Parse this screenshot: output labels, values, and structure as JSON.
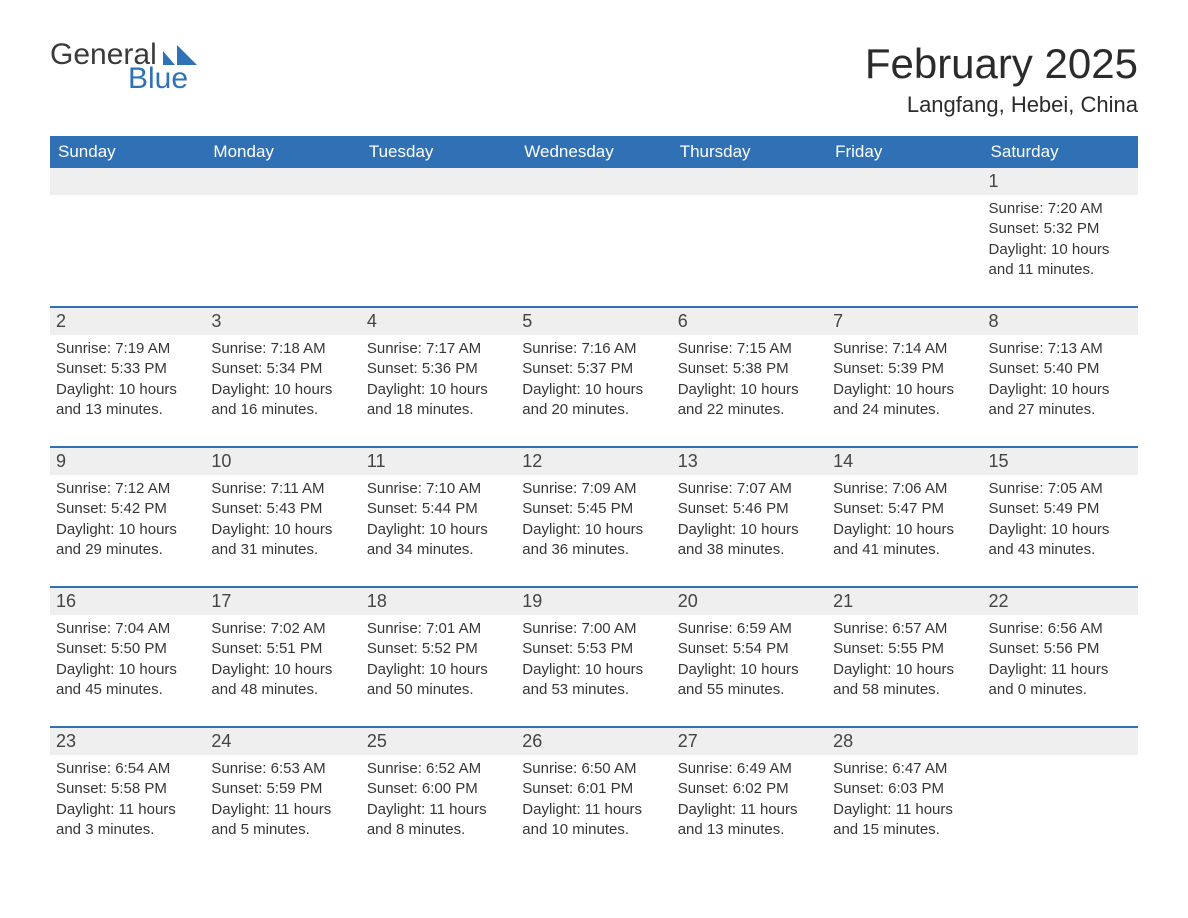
{
  "logo": {
    "text1": "General",
    "text2": "Blue",
    "accent_color": "#2f72b6"
  },
  "title": "February 2025",
  "location": "Langfang, Hebei, China",
  "colors": {
    "header_bg": "#3070b4",
    "header_text": "#ffffff",
    "num_bg": "#efefef",
    "row_border": "#3070b4",
    "text": "#363636"
  },
  "fonts": {
    "title_size": 42,
    "location_size": 22,
    "dow_size": 17,
    "body_size": 15
  },
  "days_of_week": [
    "Sunday",
    "Monday",
    "Tuesday",
    "Wednesday",
    "Thursday",
    "Friday",
    "Saturday"
  ],
  "first_weekday_index": 6,
  "days": [
    {
      "n": 1,
      "sunrise": "7:20 AM",
      "sunset": "5:32 PM",
      "daylight": "10 hours and 11 minutes."
    },
    {
      "n": 2,
      "sunrise": "7:19 AM",
      "sunset": "5:33 PM",
      "daylight": "10 hours and 13 minutes."
    },
    {
      "n": 3,
      "sunrise": "7:18 AM",
      "sunset": "5:34 PM",
      "daylight": "10 hours and 16 minutes."
    },
    {
      "n": 4,
      "sunrise": "7:17 AM",
      "sunset": "5:36 PM",
      "daylight": "10 hours and 18 minutes."
    },
    {
      "n": 5,
      "sunrise": "7:16 AM",
      "sunset": "5:37 PM",
      "daylight": "10 hours and 20 minutes."
    },
    {
      "n": 6,
      "sunrise": "7:15 AM",
      "sunset": "5:38 PM",
      "daylight": "10 hours and 22 minutes."
    },
    {
      "n": 7,
      "sunrise": "7:14 AM",
      "sunset": "5:39 PM",
      "daylight": "10 hours and 24 minutes."
    },
    {
      "n": 8,
      "sunrise": "7:13 AM",
      "sunset": "5:40 PM",
      "daylight": "10 hours and 27 minutes."
    },
    {
      "n": 9,
      "sunrise": "7:12 AM",
      "sunset": "5:42 PM",
      "daylight": "10 hours and 29 minutes."
    },
    {
      "n": 10,
      "sunrise": "7:11 AM",
      "sunset": "5:43 PM",
      "daylight": "10 hours and 31 minutes."
    },
    {
      "n": 11,
      "sunrise": "7:10 AM",
      "sunset": "5:44 PM",
      "daylight": "10 hours and 34 minutes."
    },
    {
      "n": 12,
      "sunrise": "7:09 AM",
      "sunset": "5:45 PM",
      "daylight": "10 hours and 36 minutes."
    },
    {
      "n": 13,
      "sunrise": "7:07 AM",
      "sunset": "5:46 PM",
      "daylight": "10 hours and 38 minutes."
    },
    {
      "n": 14,
      "sunrise": "7:06 AM",
      "sunset": "5:47 PM",
      "daylight": "10 hours and 41 minutes."
    },
    {
      "n": 15,
      "sunrise": "7:05 AM",
      "sunset": "5:49 PM",
      "daylight": "10 hours and 43 minutes."
    },
    {
      "n": 16,
      "sunrise": "7:04 AM",
      "sunset": "5:50 PM",
      "daylight": "10 hours and 45 minutes."
    },
    {
      "n": 17,
      "sunrise": "7:02 AM",
      "sunset": "5:51 PM",
      "daylight": "10 hours and 48 minutes."
    },
    {
      "n": 18,
      "sunrise": "7:01 AM",
      "sunset": "5:52 PM",
      "daylight": "10 hours and 50 minutes."
    },
    {
      "n": 19,
      "sunrise": "7:00 AM",
      "sunset": "5:53 PM",
      "daylight": "10 hours and 53 minutes."
    },
    {
      "n": 20,
      "sunrise": "6:59 AM",
      "sunset": "5:54 PM",
      "daylight": "10 hours and 55 minutes."
    },
    {
      "n": 21,
      "sunrise": "6:57 AM",
      "sunset": "5:55 PM",
      "daylight": "10 hours and 58 minutes."
    },
    {
      "n": 22,
      "sunrise": "6:56 AM",
      "sunset": "5:56 PM",
      "daylight": "11 hours and 0 minutes."
    },
    {
      "n": 23,
      "sunrise": "6:54 AM",
      "sunset": "5:58 PM",
      "daylight": "11 hours and 3 minutes."
    },
    {
      "n": 24,
      "sunrise": "6:53 AM",
      "sunset": "5:59 PM",
      "daylight": "11 hours and 5 minutes."
    },
    {
      "n": 25,
      "sunrise": "6:52 AM",
      "sunset": "6:00 PM",
      "daylight": "11 hours and 8 minutes."
    },
    {
      "n": 26,
      "sunrise": "6:50 AM",
      "sunset": "6:01 PM",
      "daylight": "11 hours and 10 minutes."
    },
    {
      "n": 27,
      "sunrise": "6:49 AM",
      "sunset": "6:02 PM",
      "daylight": "11 hours and 13 minutes."
    },
    {
      "n": 28,
      "sunrise": "6:47 AM",
      "sunset": "6:03 PM",
      "daylight": "11 hours and 15 minutes."
    }
  ],
  "labels": {
    "sunrise": "Sunrise:",
    "sunset": "Sunset:",
    "daylight": "Daylight:"
  }
}
